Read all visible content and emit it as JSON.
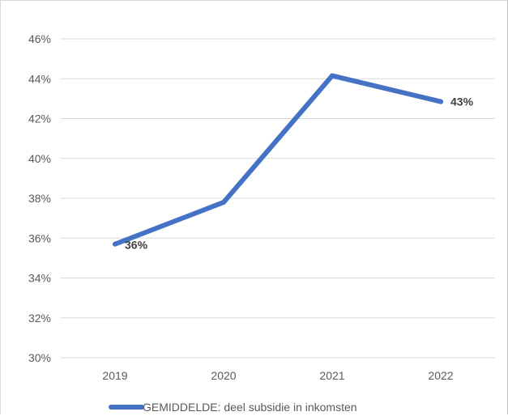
{
  "chart_data": {
    "type": "line",
    "categories": [
      "2019",
      "2020",
      "2021",
      "2022"
    ],
    "series": [
      {
        "name": "GEMIDDELDE: deel subsidie in inkomsten",
        "values": [
          35.7,
          37.8,
          44.15,
          42.85
        ],
        "color": "#4472C4"
      }
    ],
    "data_labels": [
      {
        "index": 0,
        "text": "36%"
      },
      {
        "index": 3,
        "text": "43%"
      }
    ],
    "y_ticks": [
      "30%",
      "32%",
      "34%",
      "36%",
      "38%",
      "40%",
      "42%",
      "44%",
      "46%"
    ],
    "ylim": [
      30,
      46
    ],
    "grid": true,
    "legend_position": "bottom",
    "title": "",
    "xlabel": "",
    "ylabel": ""
  }
}
